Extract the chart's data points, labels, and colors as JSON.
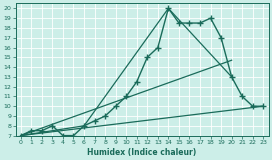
{
  "title": "",
  "xlabel": "Humidex (Indice chaleur)",
  "ylabel": "",
  "bg_color": "#cceee8",
  "line_color": "#1a6b5a",
  "grid_color": "#b8ddd8",
  "xlim": [
    -0.5,
    23.5
  ],
  "ylim": [
    7,
    20.5
  ],
  "yticks": [
    7,
    8,
    9,
    10,
    11,
    12,
    13,
    14,
    15,
    16,
    17,
    18,
    19,
    20
  ],
  "xticks": [
    0,
    1,
    2,
    3,
    4,
    5,
    6,
    7,
    8,
    9,
    10,
    11,
    12,
    13,
    14,
    15,
    16,
    17,
    18,
    19,
    20,
    21,
    22,
    23
  ],
  "series": [
    {
      "x": [
        0,
        1,
        2,
        3,
        4,
        5,
        6,
        7,
        8,
        9,
        10,
        11,
        12,
        13,
        14,
        15,
        16,
        17,
        18,
        19,
        20,
        21,
        22,
        23
      ],
      "y": [
        7,
        7.5,
        7.5,
        8.0,
        7.0,
        7.0,
        8.0,
        8.5,
        9.0,
        10.0,
        11.0,
        12.5,
        15.0,
        16.0,
        20.0,
        18.5,
        18.5,
        18.5,
        19.0,
        17.0,
        13.0,
        11.0,
        10.0,
        10.0
      ],
      "marker": "+",
      "markersize": 4,
      "linewidth": 1.0
    },
    {
      "x": [
        0,
        6,
        14,
        20
      ],
      "y": [
        7,
        8.0,
        20.0,
        13.0
      ],
      "marker": null,
      "linewidth": 0.9
    },
    {
      "x": [
        0,
        23
      ],
      "y": [
        7,
        10.0
      ],
      "marker": null,
      "linewidth": 0.9
    },
    {
      "x": [
        0,
        20
      ],
      "y": [
        7,
        14.7
      ],
      "marker": null,
      "linewidth": 0.9
    }
  ]
}
